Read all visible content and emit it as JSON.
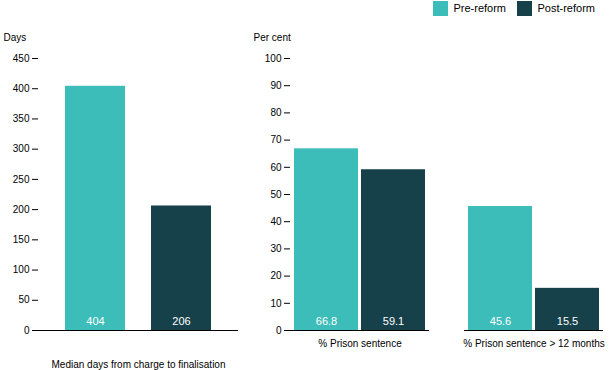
{
  "chart_data": [
    {
      "type": "bar",
      "categories": [
        null,
        null
      ],
      "values": [
        404,
        206
      ],
      "colors": [
        "#3dbdba",
        "#17414a"
      ],
      "xlabel": "Median days from charge to finalisation",
      "ylabel": "Days",
      "ylim": [
        0,
        450
      ],
      "yticks": [
        0,
        50,
        100,
        150,
        200,
        250,
        300,
        350,
        400,
        450
      ],
      "data_labels": true,
      "grid": false
    },
    {
      "type": "bar",
      "categories": [
        "% Prison sentence",
        "% Prison sentence > 12 months"
      ],
      "series": [
        {
          "name": "Pre-reform",
          "color": "#3dbdba",
          "values": [
            66.8,
            45.6
          ]
        },
        {
          "name": "Post-reform",
          "color": "#17414a",
          "values": [
            59.1,
            15.5
          ]
        }
      ],
      "ylabel": "Per cent",
      "ylim": [
        0,
        100
      ],
      "yticks": [
        0,
        10,
        20,
        30,
        40,
        50,
        60,
        70,
        80,
        90,
        100
      ],
      "data_labels": true,
      "legend": "upper right",
      "grid": false
    }
  ]
}
